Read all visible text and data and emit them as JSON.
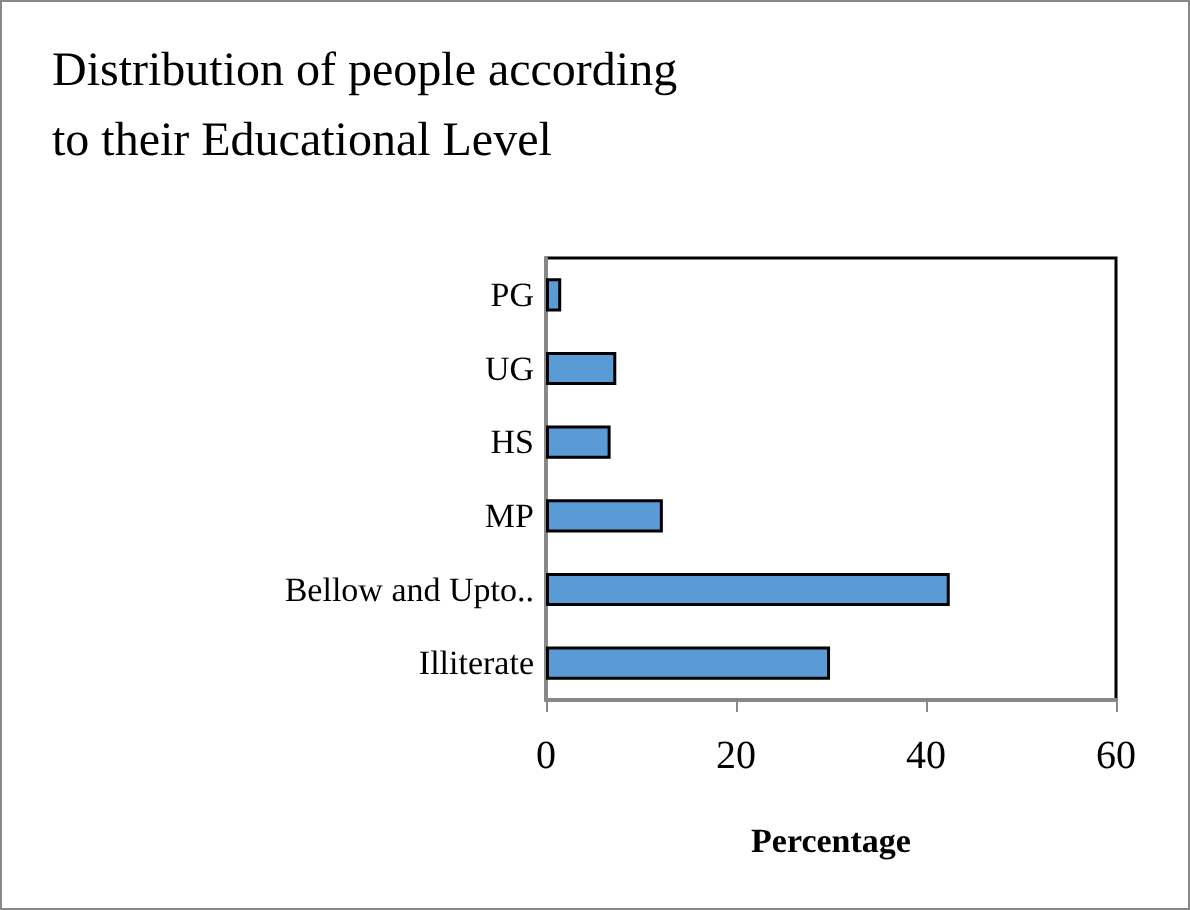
{
  "chart_data": {
    "type": "bar",
    "orientation": "horizontal",
    "title": "Distribution of people according\nto their Educational Level",
    "xlabel": "Percentage",
    "categories": [
      "PG",
      "UG",
      "HS",
      "MP",
      "Bellow and Upto..",
      "Illiterate"
    ],
    "values": [
      1.6,
      7.4,
      6.8,
      12.3,
      42.5,
      29.9
    ],
    "color": "#5b9bd5",
    "xlim": [
      0,
      60
    ],
    "xticks": [
      0,
      20,
      40,
      60
    ],
    "grid": false
  }
}
